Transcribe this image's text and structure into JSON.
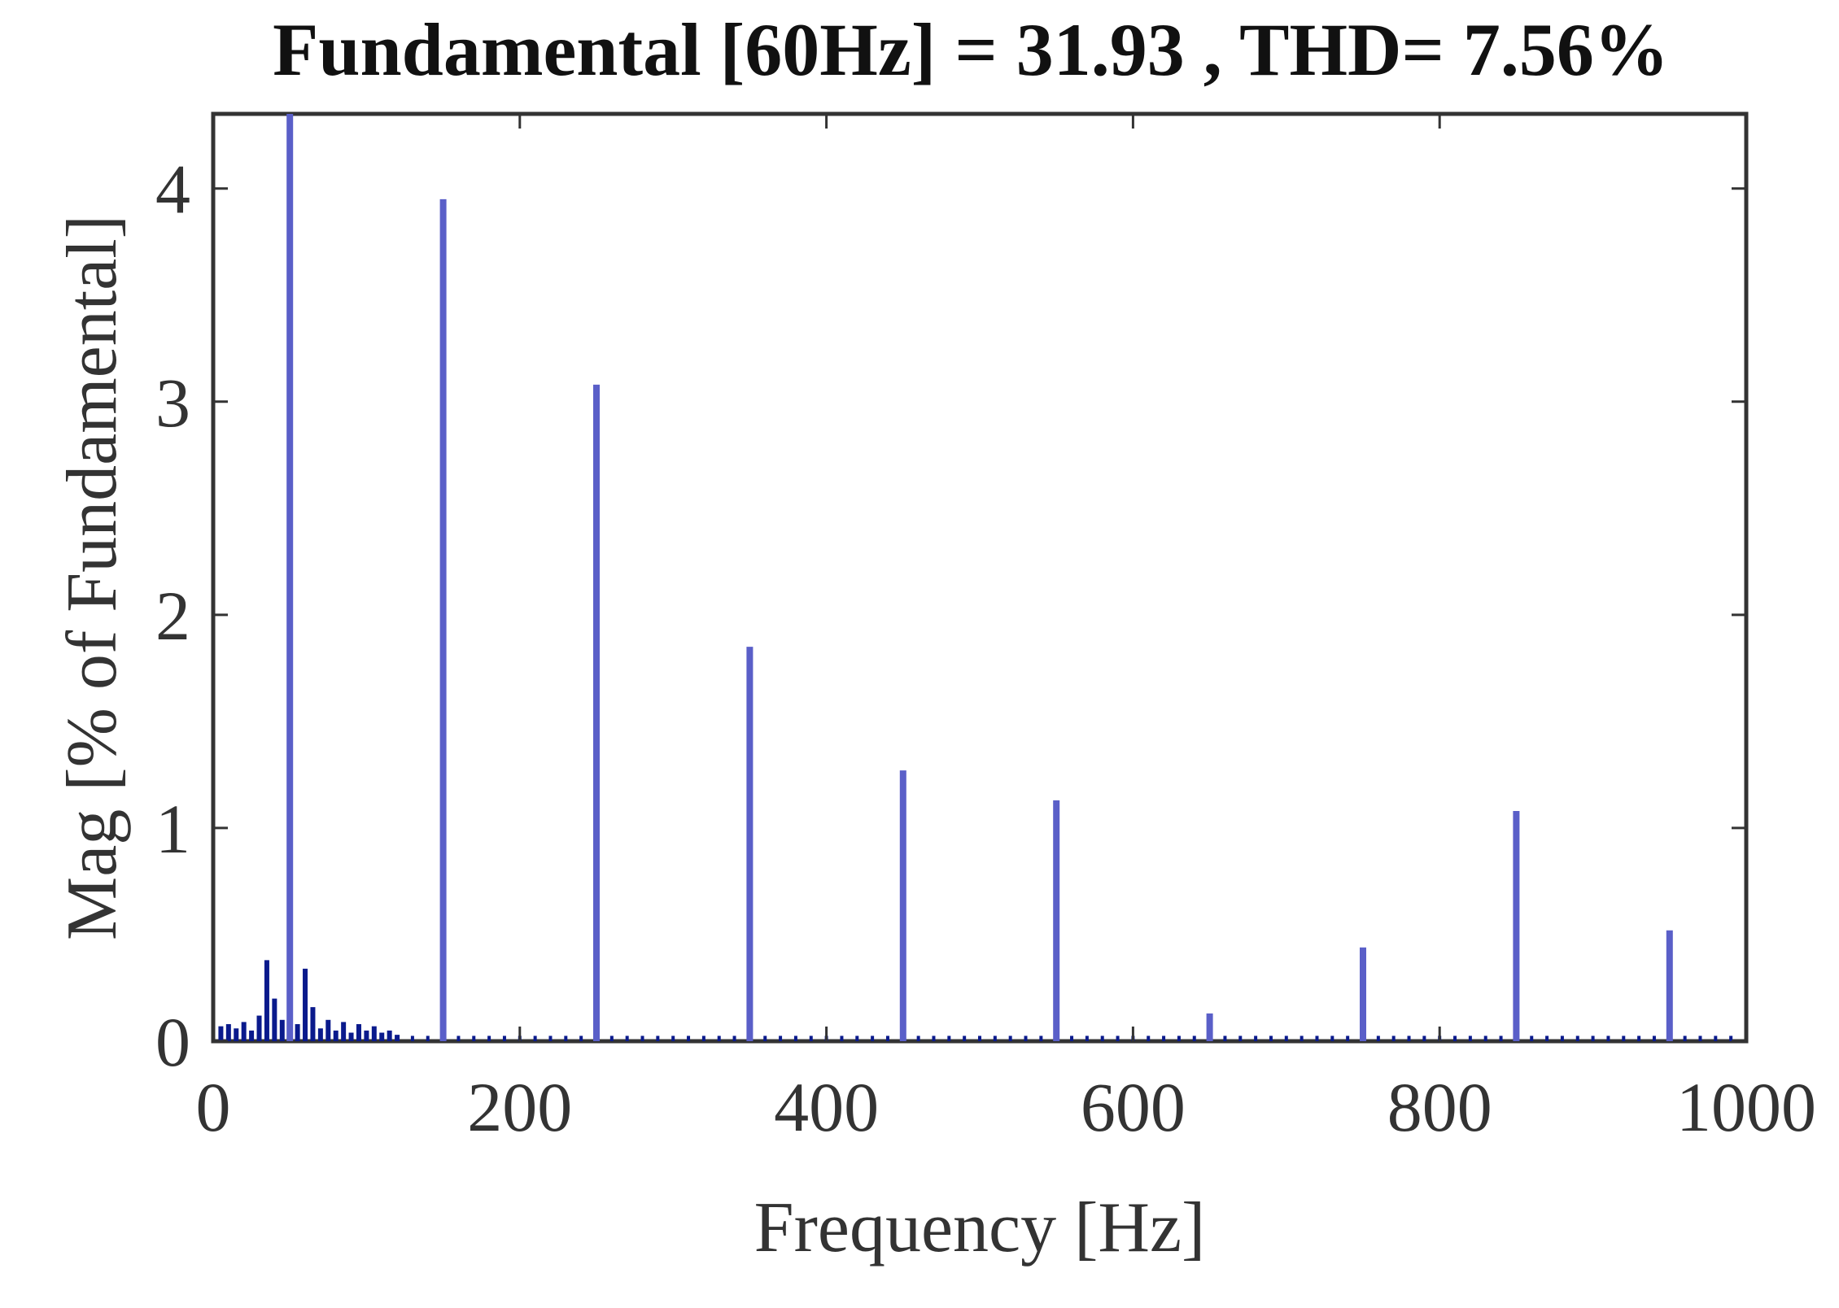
{
  "chart_data": {
    "type": "bar",
    "title": "Fundamental [60Hz] = 31.93 , THD= 7.56%",
    "xlabel": "Frequency [Hz]",
    "ylabel": "Mag [% of Fundamental]",
    "xlim": [
      0,
      1000
    ],
    "ylim": [
      0,
      4.35
    ],
    "xticks": [
      0,
      200,
      400,
      600,
      800,
      1000
    ],
    "yticks": [
      0,
      1,
      2,
      3,
      4
    ],
    "grid": false,
    "bar_color": "#5a5fc8",
    "noise_color": "#0a1a8c",
    "harmonics": {
      "x": [
        50,
        150,
        250,
        350,
        450,
        550,
        650,
        750,
        850,
        950
      ],
      "y": [
        4.35,
        3.95,
        3.08,
        1.85,
        1.27,
        1.13,
        0.13,
        0.44,
        1.08,
        0.52
      ]
    },
    "low_frequency_components": {
      "x": [
        5,
        10,
        15,
        20,
        25,
        30,
        35,
        40,
        45,
        55,
        60,
        65,
        70,
        75,
        80,
        85,
        90,
        95,
        100,
        105,
        110,
        115,
        120
      ],
      "y": [
        0.07,
        0.08,
        0.06,
        0.09,
        0.05,
        0.12,
        0.38,
        0.2,
        0.1,
        0.08,
        0.34,
        0.16,
        0.06,
        0.1,
        0.05,
        0.09,
        0.04,
        0.08,
        0.05,
        0.07,
        0.04,
        0.05,
        0.03
      ]
    },
    "noise_floor": {
      "x_start": 120,
      "x_end": 1000,
      "step": 10,
      "y": 0.025
    }
  }
}
